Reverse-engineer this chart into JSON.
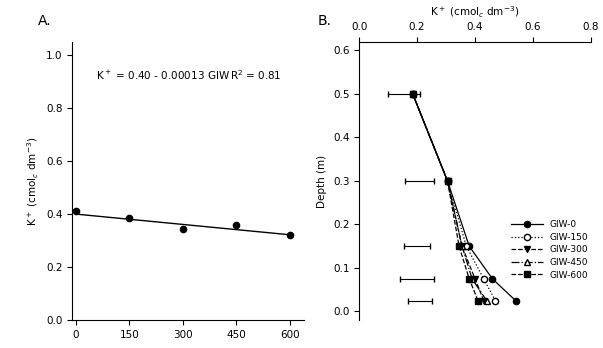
{
  "panel_A": {
    "label": "A.",
    "equation": "K$^+$ = 0.40 - 0.00013 GIW",
    "r2_label": "R$^2$ = 0.81",
    "x_data": [
      0,
      150,
      300,
      450,
      600
    ],
    "y_data": [
      0.41,
      0.385,
      0.342,
      0.36,
      0.322
    ],
    "line_x": [
      0,
      600
    ],
    "line_y": [
      0.4,
      0.322
    ],
    "ylabel": "K$^+$ (cmol$_c$ dm$^{-3}$)",
    "xlim": [
      -10,
      640
    ],
    "ylim": [
      0.0,
      1.05
    ],
    "yticks": [
      0.0,
      0.2,
      0.4,
      0.6,
      0.8,
      1.0
    ],
    "xticks": [
      0,
      150,
      300,
      450,
      600
    ]
  },
  "panel_B": {
    "label": "B.",
    "xlabel": "K$^+$ (cmol$_c$ dm$^{-3}$)",
    "ylabel": "Depth (m)",
    "xlim": [
      0.0,
      0.8
    ],
    "ylim": [
      0.62,
      -0.02
    ],
    "xticks": [
      0.0,
      0.2,
      0.4,
      0.6,
      0.8
    ],
    "yticks": [
      0.0,
      0.1,
      0.2,
      0.3,
      0.4,
      0.5,
      0.6
    ],
    "depths": [
      0.025,
      0.075,
      0.15,
      0.3,
      0.5
    ],
    "series": {
      "GIW-0": [
        0.54,
        0.46,
        0.38,
        0.305,
        0.185
      ],
      "GIW-150": [
        0.47,
        0.43,
        0.37,
        0.305,
        0.185
      ],
      "GIW-300": [
        0.43,
        0.4,
        0.355,
        0.305,
        0.185
      ],
      "GIW-450": [
        0.44,
        0.39,
        0.355,
        0.305,
        0.185
      ],
      "GIW-600": [
        0.41,
        0.38,
        0.345,
        0.305,
        0.185
      ]
    },
    "error_x": [
      0.21,
      0.2,
      0.2,
      0.21,
      0.155
    ],
    "error_y": [
      0.025,
      0.075,
      0.15,
      0.3,
      0.5
    ],
    "error_xerr": [
      0.04,
      0.06,
      0.045,
      0.05,
      0.055
    ],
    "legend_labels": [
      "GIW-0",
      "GIW-150",
      "GIW-300",
      "GIW-450",
      "GIW-600"
    ],
    "line_styles": [
      "-",
      ":",
      "--",
      "-.",
      "--"
    ],
    "markers": [
      "o",
      "o",
      "v",
      "^",
      "s"
    ],
    "marker_fills": [
      "black",
      "white",
      "black",
      "white",
      "black"
    ]
  }
}
